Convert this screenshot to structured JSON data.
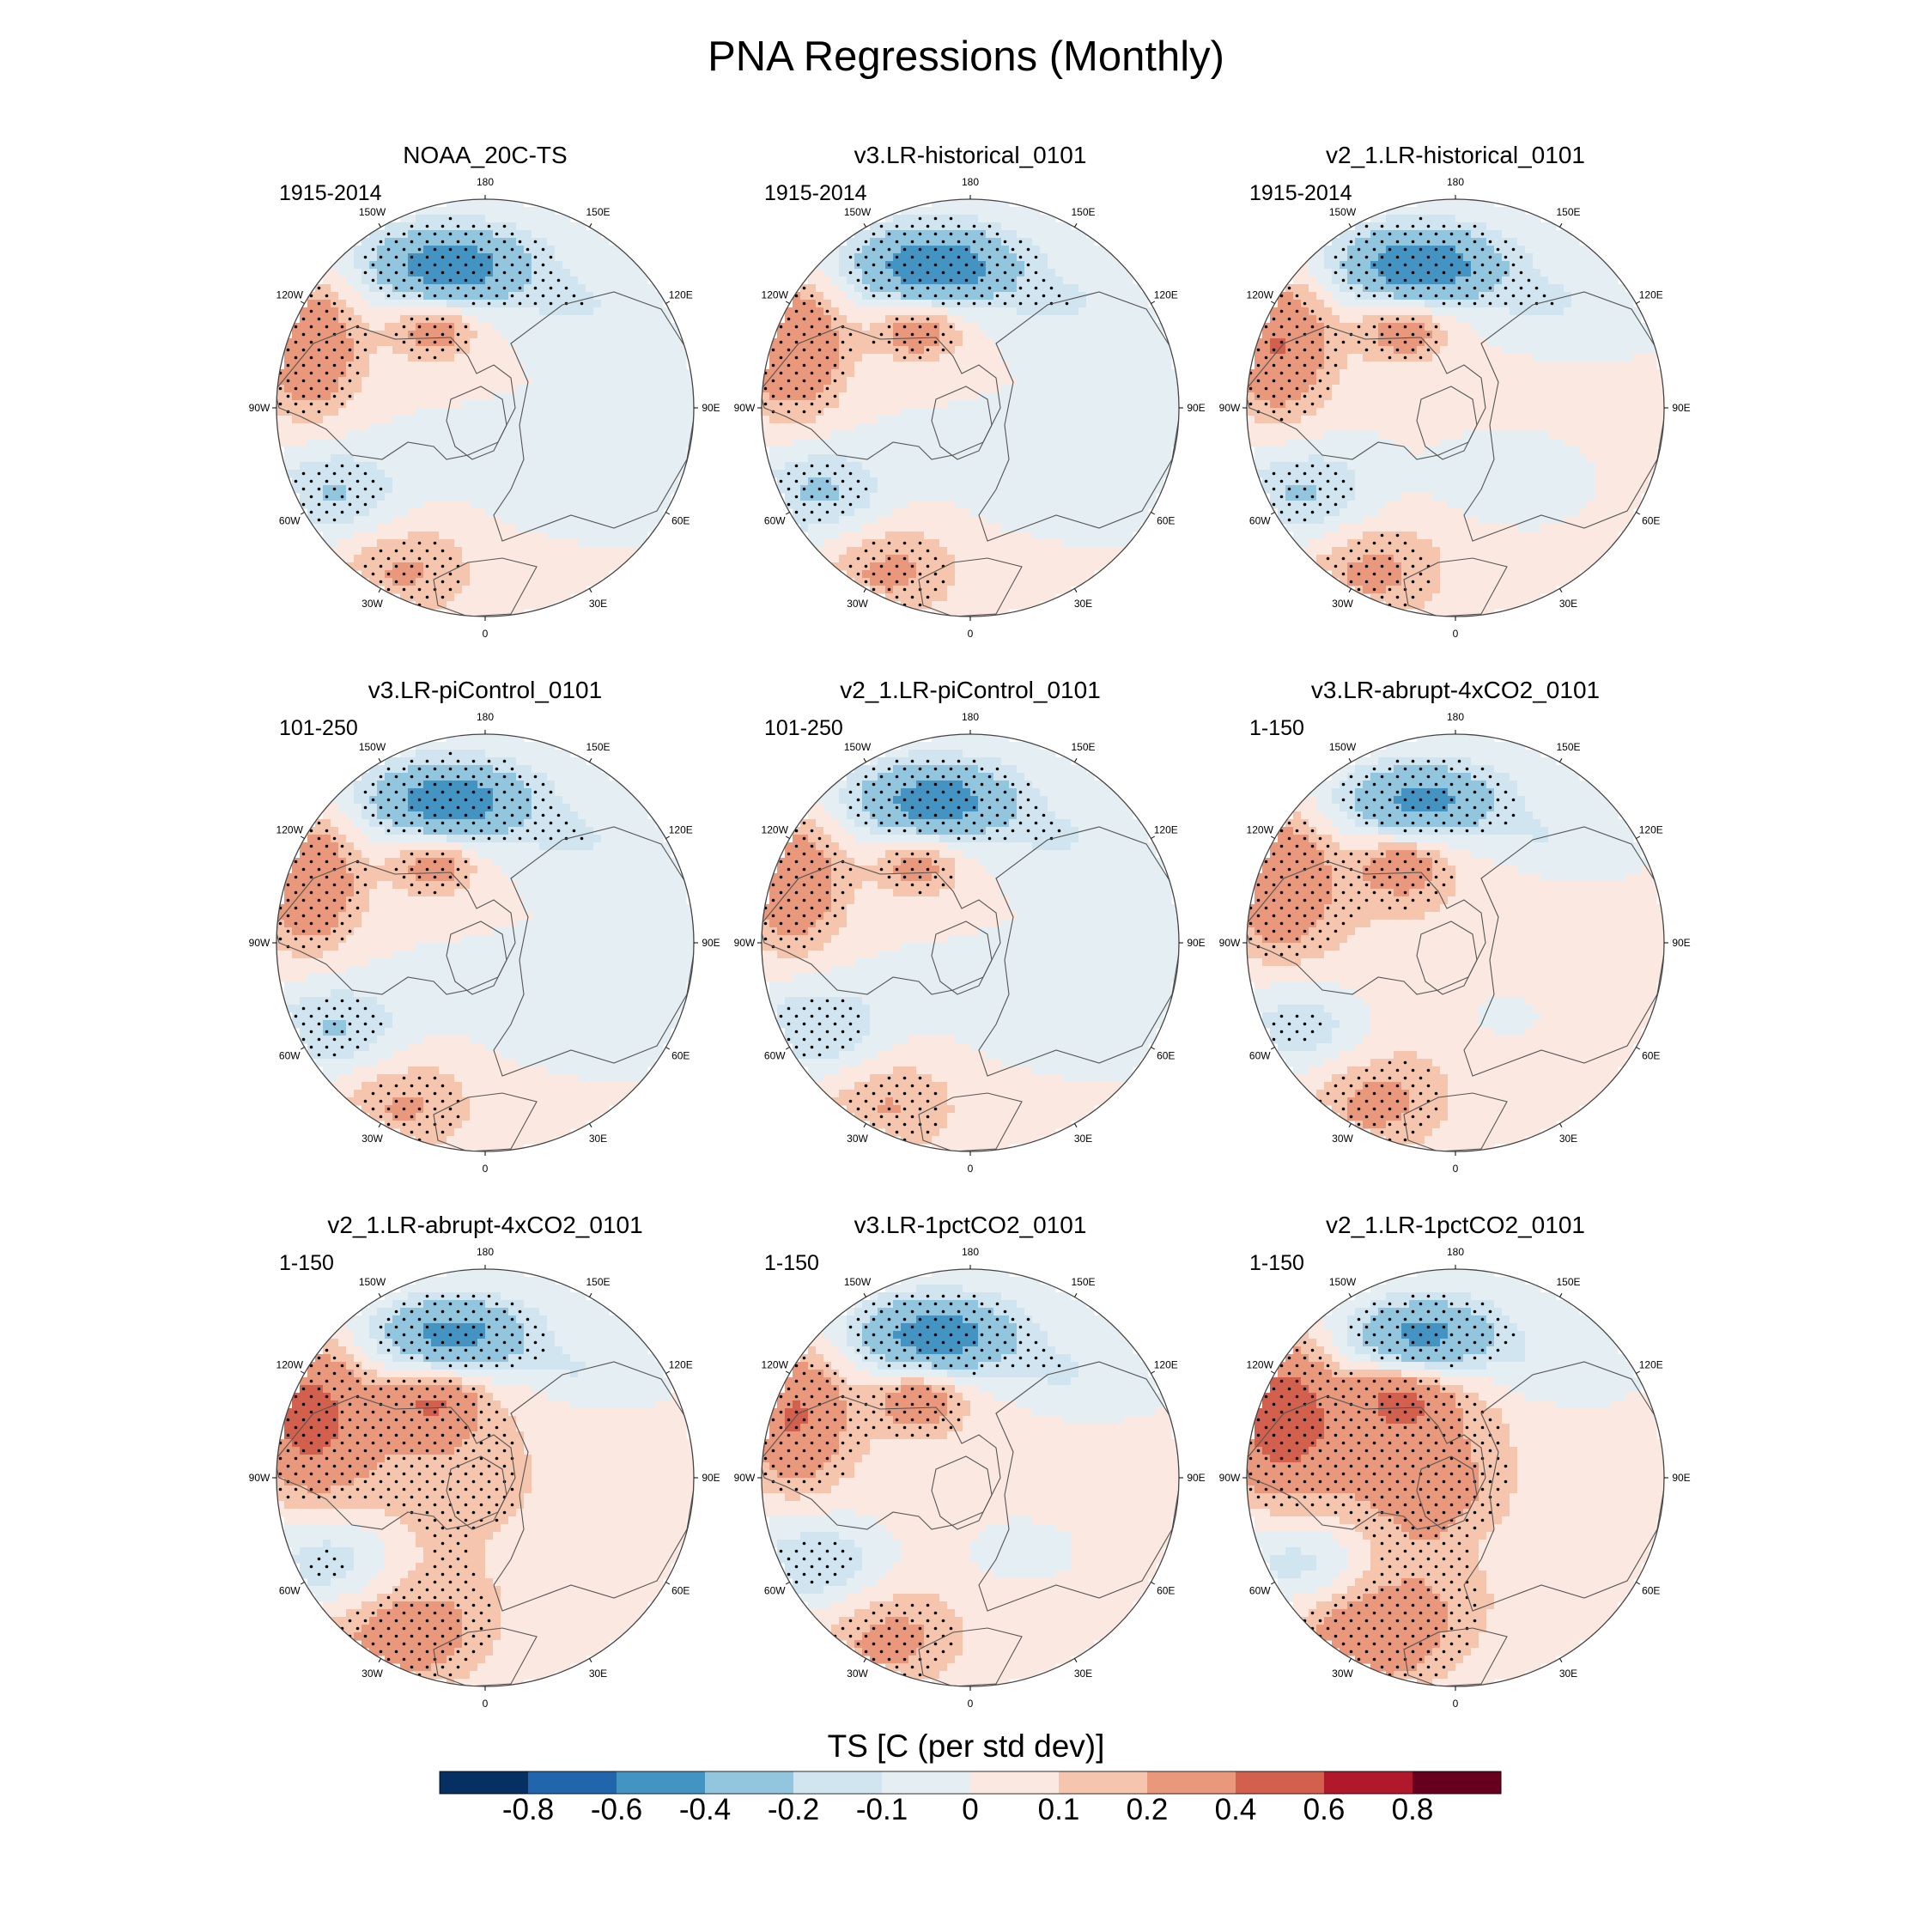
{
  "title": "PNA Regressions (Monthly)",
  "colors": {
    "levels": [
      "#053061",
      "#2166ac",
      "#4393c3",
      "#92c5de",
      "#d1e5f0",
      "#e5eef3",
      "#fbe9e1",
      "#f6c5ad",
      "#e9987b",
      "#d2604d",
      "#b2182b",
      "#67001f"
    ],
    "land_outline": "#555555",
    "stipple": "#000000",
    "frame": "#444444"
  },
  "lon_labels": [
    "180",
    "150E",
    "120E",
    "90E",
    "60E",
    "30E",
    "0",
    "30W",
    "60W",
    "90W",
    "120W",
    "150W"
  ],
  "panels": [
    {
      "title": "NOAA_20C-TS",
      "period": "1915-2014",
      "intensity": 1.0,
      "warmBias": 0.0
    },
    {
      "title": "v3.LR-historical_0101",
      "period": "1915-2014",
      "intensity": 1.05,
      "warmBias": 0.0
    },
    {
      "title": "v2_1.LR-historical_0101",
      "period": "1915-2014",
      "intensity": 1.05,
      "warmBias": 0.02
    },
    {
      "title": "v3.LR-piControl_0101",
      "period": "101-250",
      "intensity": 1.0,
      "warmBias": 0.0
    },
    {
      "title": "v2_1.LR-piControl_0101",
      "period": "101-250",
      "intensity": 0.95,
      "warmBias": 0.0
    },
    {
      "title": "v3.LR-abrupt-4xCO2_0101",
      "period": "1-150",
      "intensity": 0.9,
      "warmBias": 0.12
    },
    {
      "title": "v2_1.LR-abrupt-4xCO2_0101",
      "period": "1-150",
      "intensity": 1.0,
      "warmBias": 0.25
    },
    {
      "title": "v3.LR-1pctCO2_0101",
      "period": "1-150",
      "intensity": 1.0,
      "warmBias": 0.08
    },
    {
      "title": "v2_1.LR-1pctCO2_0101",
      "period": "1-150",
      "intensity": 1.0,
      "warmBias": 0.35
    }
  ],
  "colorbar": {
    "title": "TS [C (per std dev)]",
    "ticks": [
      "-0.8",
      "-0.6",
      "-0.4",
      "-0.2",
      "-0.1",
      "0",
      "0.1",
      "0.2",
      "0.4",
      "0.6",
      "0.8"
    ]
  }
}
